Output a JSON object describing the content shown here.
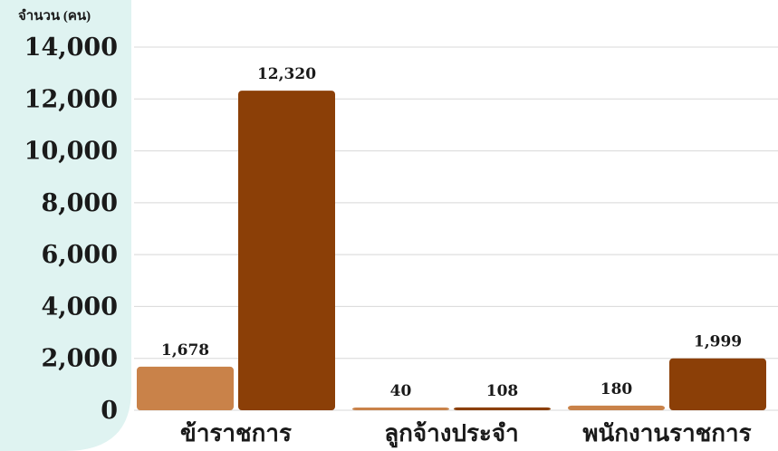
{
  "colors": {
    "panel": "#dff3f1",
    "series_light": "#c98249",
    "series_dark": "#8b3f07",
    "grid": "#d8d8d8",
    "text": "#1a1a1a"
  },
  "chart_data": {
    "type": "bar",
    "ylabel": "จำนวน (คน)",
    "ylim": [
      0,
      14000
    ],
    "yticks": [
      0,
      2000,
      4000,
      6000,
      8000,
      10000,
      12000,
      14000
    ],
    "ytick_labels": [
      "0",
      "2,000",
      "4,000",
      "6,000",
      "8,000",
      "10,000",
      "12,000",
      "14,000"
    ],
    "categories": [
      "ข้าราชการ",
      "ลูกจ้างประจำ",
      "พนักงานราชการ"
    ],
    "series": [
      {
        "values": [
          1678,
          40,
          180
        ],
        "labels": [
          "1,678",
          "40",
          "180"
        ],
        "color": "#c98249"
      },
      {
        "values": [
          12320,
          108,
          1999
        ],
        "labels": [
          "12,320",
          "108",
          "1,999"
        ],
        "color": "#8b3f07"
      }
    ],
    "grid": true,
    "legend": "none"
  }
}
